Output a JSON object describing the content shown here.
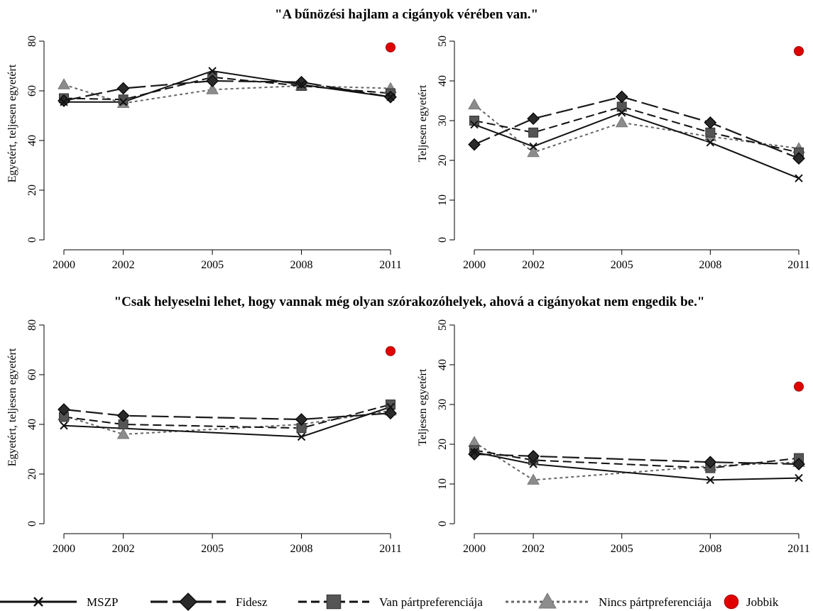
{
  "titles": [
    "\"A bűnözési hajlam a cigányok vérében van.\"",
    "\"Csak helyeselni lehet, hogy vannak még olyan szórakozóhelyek, ahová a cigányokat nem engedik be.\""
  ],
  "legend": [
    {
      "key": "mszp",
      "label": "MSZP"
    },
    {
      "key": "fidesz",
      "label": "Fidesz"
    },
    {
      "key": "van",
      "label": "Van pártpreferenciája"
    },
    {
      "key": "nincs",
      "label": "Nincs pártpreferenciája"
    },
    {
      "key": "jobbik",
      "label": "Jobbik"
    }
  ],
  "colors": {
    "mszp": "#111111",
    "fidesz": "#1a1a1a",
    "van": "#555555",
    "nincs": "#8c8c8c",
    "jobbik": "#e00000"
  },
  "chart_data": [
    {
      "type": "line",
      "ylabel": "Egyetért, teljesen egyetért",
      "ylim": [
        0,
        80
      ],
      "yticks": [
        0,
        20,
        40,
        60,
        80
      ],
      "x": [
        2000,
        2002,
        2005,
        2008,
        2011
      ],
      "series": [
        {
          "key": "mszp",
          "name": "MSZP",
          "values": [
            55.5,
            55.5,
            68,
            62.5,
            57.5
          ]
        },
        {
          "key": "fidesz",
          "name": "Fidesz",
          "values": [
            56,
            61,
            64,
            63.5,
            57.5
          ]
        },
        {
          "key": "van",
          "name": "Van pártpreferenciája",
          "values": [
            57,
            56.5,
            65.5,
            62,
            59
          ]
        },
        {
          "key": "nincs",
          "name": "Nincs pártpreferenciája",
          "values": [
            62.5,
            55,
            60.5,
            62,
            61
          ]
        },
        {
          "key": "jobbik",
          "name": "Jobbik",
          "values": [
            null,
            null,
            null,
            null,
            77.5
          ]
        }
      ]
    },
    {
      "type": "line",
      "ylabel": "Teljesen egyetért",
      "ylim": [
        0,
        50
      ],
      "yticks": [
        0,
        10,
        20,
        30,
        40,
        50
      ],
      "x": [
        2000,
        2002,
        2005,
        2008,
        2011
      ],
      "series": [
        {
          "key": "mszp",
          "name": "MSZP",
          "values": [
            29,
            23.5,
            32,
            24.5,
            15.5
          ]
        },
        {
          "key": "fidesz",
          "name": "Fidesz",
          "values": [
            24,
            30.5,
            36,
            29.5,
            20.5
          ]
        },
        {
          "key": "van",
          "name": "Van pártpreferenciája",
          "values": [
            30,
            27,
            33.5,
            27,
            22
          ]
        },
        {
          "key": "nincs",
          "name": "Nincs pártpreferenciája",
          "values": [
            34,
            22,
            29.5,
            26,
            23
          ]
        },
        {
          "key": "jobbik",
          "name": "Jobbik",
          "values": [
            null,
            null,
            null,
            null,
            47.5
          ]
        }
      ]
    },
    {
      "type": "line",
      "ylabel": "Egyetért, teljesen egyetért",
      "ylim": [
        0,
        80
      ],
      "yticks": [
        0,
        20,
        40,
        60,
        80
      ],
      "x": [
        2000,
        2002,
        2005,
        2008,
        2011
      ],
      "series": [
        {
          "key": "mszp",
          "name": "MSZP",
          "values": [
            39.5,
            null,
            null,
            35,
            47
          ]
        },
        {
          "key": "fidesz",
          "name": "Fidesz",
          "values": [
            46,
            43.5,
            null,
            42,
            44.5
          ]
        },
        {
          "key": "van",
          "name": "Van pártpreferenciája",
          "values": [
            43,
            40,
            null,
            38.5,
            48
          ]
        },
        {
          "key": "nincs",
          "name": "Nincs pártpreferenciája",
          "values": [
            43.5,
            36,
            null,
            40,
            45.5
          ]
        },
        {
          "key": "jobbik",
          "name": "Jobbik",
          "values": [
            null,
            null,
            null,
            null,
            69.5
          ]
        }
      ]
    },
    {
      "type": "line",
      "ylabel": "Teljesen egyetért",
      "ylim": [
        0,
        50
      ],
      "yticks": [
        0,
        10,
        20,
        30,
        40,
        50
      ],
      "x": [
        2000,
        2002,
        2005,
        2008,
        2011
      ],
      "series": [
        {
          "key": "mszp",
          "name": "MSZP",
          "values": [
            18,
            15,
            null,
            11,
            11.5
          ]
        },
        {
          "key": "fidesz",
          "name": "Fidesz",
          "values": [
            17.5,
            17,
            null,
            15.5,
            15
          ]
        },
        {
          "key": "van",
          "name": "Van pártpreferenciája",
          "values": [
            18.5,
            16,
            null,
            14,
            16.5
          ]
        },
        {
          "key": "nincs",
          "name": "Nincs pártpreferenciája",
          "values": [
            20.5,
            11,
            null,
            14.5,
            15.5
          ]
        },
        {
          "key": "jobbik",
          "name": "Jobbik",
          "values": [
            null,
            null,
            null,
            null,
            34.5
          ]
        }
      ]
    }
  ]
}
